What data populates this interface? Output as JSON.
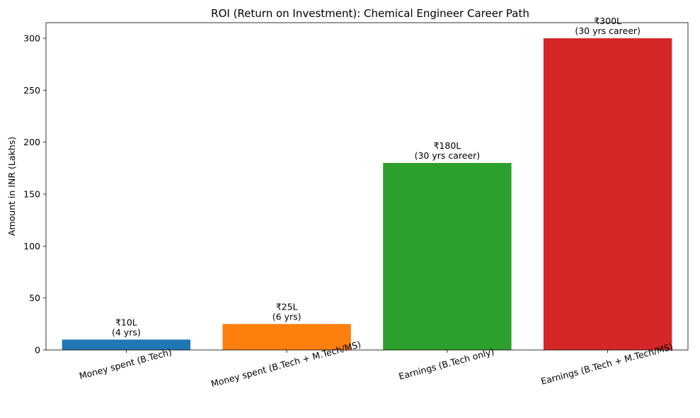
{
  "chart_data": {
    "type": "bar",
    "title": "ROI (Return on Investment): Chemical Engineer Career Path",
    "xlabel": "",
    "ylabel": "Amount in INR (Lakhs)",
    "ylim": [
      0,
      315
    ],
    "yticks": [
      0,
      50,
      100,
      150,
      200,
      250,
      300
    ],
    "grid": false,
    "categories": [
      "Money spent (B.Tech)",
      "Money spent (B.Tech + M.Tech/MS)",
      "Earnings (B.Tech only)",
      "Earnings (B.Tech + M.Tech/MS)"
    ],
    "values": [
      10,
      25,
      180,
      300
    ],
    "colors": [
      "#1f77b4",
      "#ff7f0e",
      "#2ca02c",
      "#d62728"
    ],
    "data_labels": [
      [
        "₹10L",
        "(4 yrs)"
      ],
      [
        "₹25L",
        "(6 yrs)"
      ],
      [
        "₹180L",
        "(30 yrs career)"
      ],
      [
        "₹300L",
        "(30 yrs career)"
      ]
    ]
  }
}
